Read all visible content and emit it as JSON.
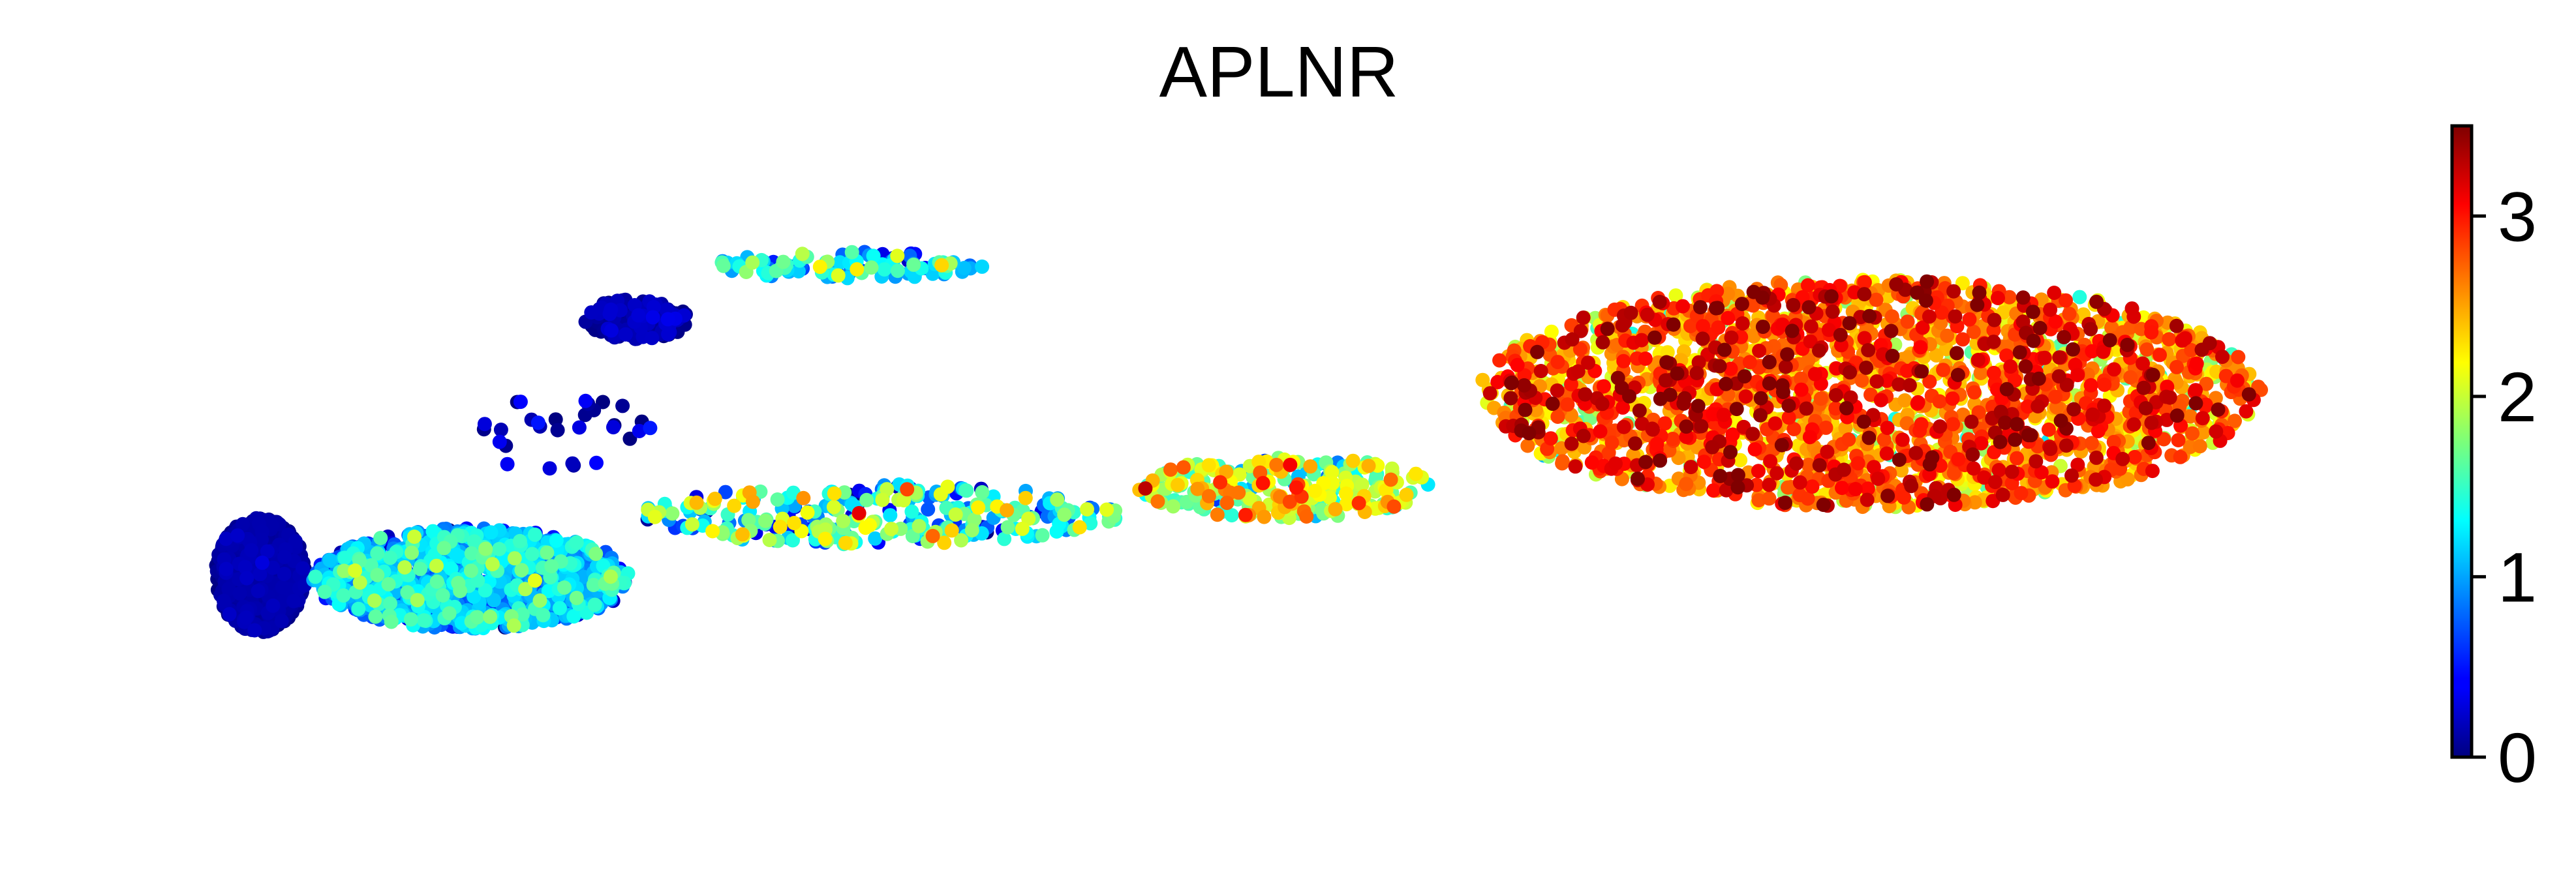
{
  "chart_data": {
    "type": "scatter",
    "title": "APLNR",
    "xlabel": "",
    "ylabel": "",
    "axes_visible": false,
    "colormap": "jet",
    "colorbar": {
      "position": "right",
      "min": 0,
      "max": 3.5,
      "ticks": [
        "0",
        "1",
        "2",
        "3"
      ],
      "tick_values": [
        0,
        1,
        2,
        3
      ]
    },
    "clusters": [
      {
        "name": "",
        "cx": 0.3,
        "cy": 2.4,
        "rx": 0.3,
        "ry": 0.85,
        "n": 900,
        "expr_mean": 0.05,
        "expr_sd": 0.08
      },
      {
        "name": "",
        "cx": 1.7,
        "cy": 2.35,
        "rx": 1.05,
        "ry": 0.75,
        "n": 1100,
        "expr_mean": 0.95,
        "expr_sd": 0.4
      },
      {
        "name": "",
        "cx": 4.4,
        "cy": 3.3,
        "rx": 1.6,
        "ry": 0.45,
        "n": 300,
        "expr_mean": 1.4,
        "expr_sd": 0.6
      },
      {
        "name": "",
        "cx": 7.1,
        "cy": 3.7,
        "rx": 1.0,
        "ry": 0.45,
        "n": 260,
        "expr_mean": 1.9,
        "expr_sd": 0.5
      },
      {
        "name": "",
        "cx": 11.0,
        "cy": 5.1,
        "rx": 2.6,
        "ry": 1.7,
        "n": 2300,
        "expr_mean": 2.65,
        "expr_sd": 0.45
      },
      {
        "name": "",
        "cx": 2.8,
        "cy": 6.2,
        "rx": 0.35,
        "ry": 0.3,
        "n": 160,
        "expr_mean": 0.1,
        "expr_sd": 0.12
      },
      {
        "name": "",
        "cx": 4.2,
        "cy": 7.0,
        "rx": 0.9,
        "ry": 0.2,
        "n": 110,
        "expr_mean": 1.2,
        "expr_sd": 0.5
      },
      {
        "name": "",
        "cx": 2.3,
        "cy": 4.5,
        "rx": 0.6,
        "ry": 0.6,
        "n": 30,
        "expr_mean": 0.15,
        "expr_sd": 0.2
      }
    ],
    "x_range": [
      0,
      14
    ],
    "y_range": [
      0,
      9
    ]
  }
}
